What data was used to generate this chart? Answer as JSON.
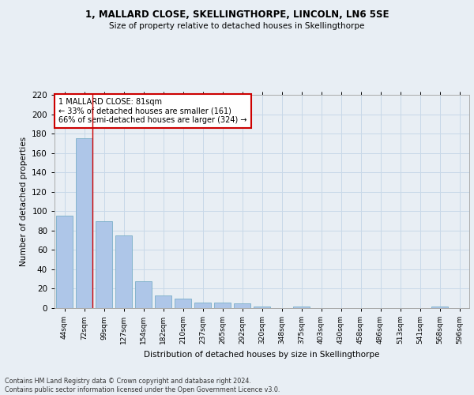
{
  "title1": "1, MALLARD CLOSE, SKELLINGTHORPE, LINCOLN, LN6 5SE",
  "title2": "Size of property relative to detached houses in Skellingthorpe",
  "xlabel": "Distribution of detached houses by size in Skellingthorpe",
  "ylabel": "Number of detached properties",
  "categories": [
    "44sqm",
    "72sqm",
    "99sqm",
    "127sqm",
    "154sqm",
    "182sqm",
    "210sqm",
    "237sqm",
    "265sqm",
    "292sqm",
    "320sqm",
    "348sqm",
    "375sqm",
    "403sqm",
    "430sqm",
    "458sqm",
    "486sqm",
    "513sqm",
    "541sqm",
    "568sqm",
    "596sqm"
  ],
  "values": [
    95,
    175,
    90,
    75,
    28,
    13,
    10,
    6,
    6,
    5,
    2,
    0,
    2,
    0,
    0,
    0,
    0,
    0,
    0,
    2,
    0
  ],
  "bar_color": "#aec6e8",
  "bar_edge_color": "#7aafc8",
  "grid_color": "#c8d8e8",
  "annotation_box_text": "1 MALLARD CLOSE: 81sqm\n← 33% of detached houses are smaller (161)\n66% of semi-detached houses are larger (324) →",
  "annotation_box_color": "#ffffff",
  "annotation_box_edge_color": "#cc0000",
  "vline_color": "#cc0000",
  "ylim": [
    0,
    220
  ],
  "yticks": [
    0,
    20,
    40,
    60,
    80,
    100,
    120,
    140,
    160,
    180,
    200,
    220
  ],
  "footnote": "Contains HM Land Registry data © Crown copyright and database right 2024.\nContains public sector information licensed under the Open Government Licence v3.0.",
  "background_color": "#e8eef4",
  "plot_bg_color": "#e8eef4"
}
